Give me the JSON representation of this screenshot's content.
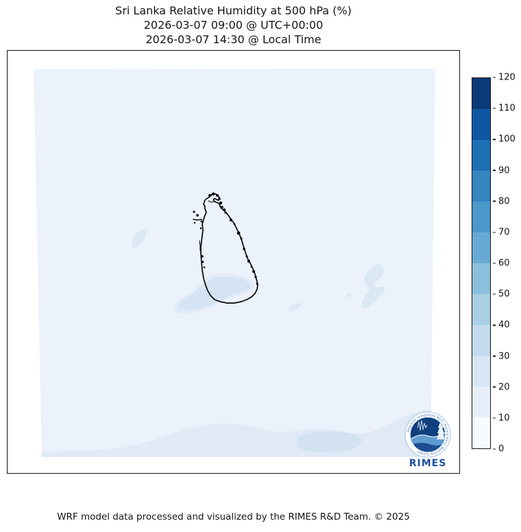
{
  "title": {
    "line1": "Sri Lanka Relative Humidity at 500 hPa (%)",
    "line2": "2026-03-07 09:00 @ UTC+00:00",
    "line3": "2026-03-07 14:30 @ Local Time"
  },
  "footer": "WRF model data processed and visualized by the RIMES R&D Team. © 2025",
  "logo": {
    "wordmark": "RIMES",
    "ring_text": "Regional Integrated Multi-Hazard Early Warning System"
  },
  "chart_data": {
    "type": "heatmap",
    "title": "Sri Lanka Relative Humidity at 500 hPa (%)",
    "variable": "Relative Humidity",
    "level": "500 hPa",
    "unit": "%",
    "time_utc": "2026-03-07 09:00 @ UTC+00:00",
    "time_local": "2026-03-07 14:30 @ Local Time",
    "region": "Sri Lanka",
    "legend_position": "right vertical colorbar",
    "colorbar": {
      "range": [
        0,
        120
      ],
      "ticks": [
        0,
        10,
        20,
        30,
        40,
        50,
        60,
        70,
        80,
        90,
        100,
        110,
        120
      ],
      "colors": [
        "#f7fbff",
        "#e7f0fa",
        "#d7e6f5",
        "#c3daef",
        "#aacfe5",
        "#8bc0dd",
        "#69aad4",
        "#4b98ca",
        "#3585c1",
        "#1e6fb4",
        "#0d57a2",
        "#0a3a78"
      ]
    },
    "field_summary": {
      "background_value_range": "0-10 %",
      "patch_value_range": "10-30 %",
      "patch_locations": [
        "south of the island",
        "southeast offshore blobs",
        "band along southern domain edge",
        "small patch west of the island"
      ]
    },
    "map_background_color": "#ebf2fb",
    "coastline_color": "#000000"
  }
}
